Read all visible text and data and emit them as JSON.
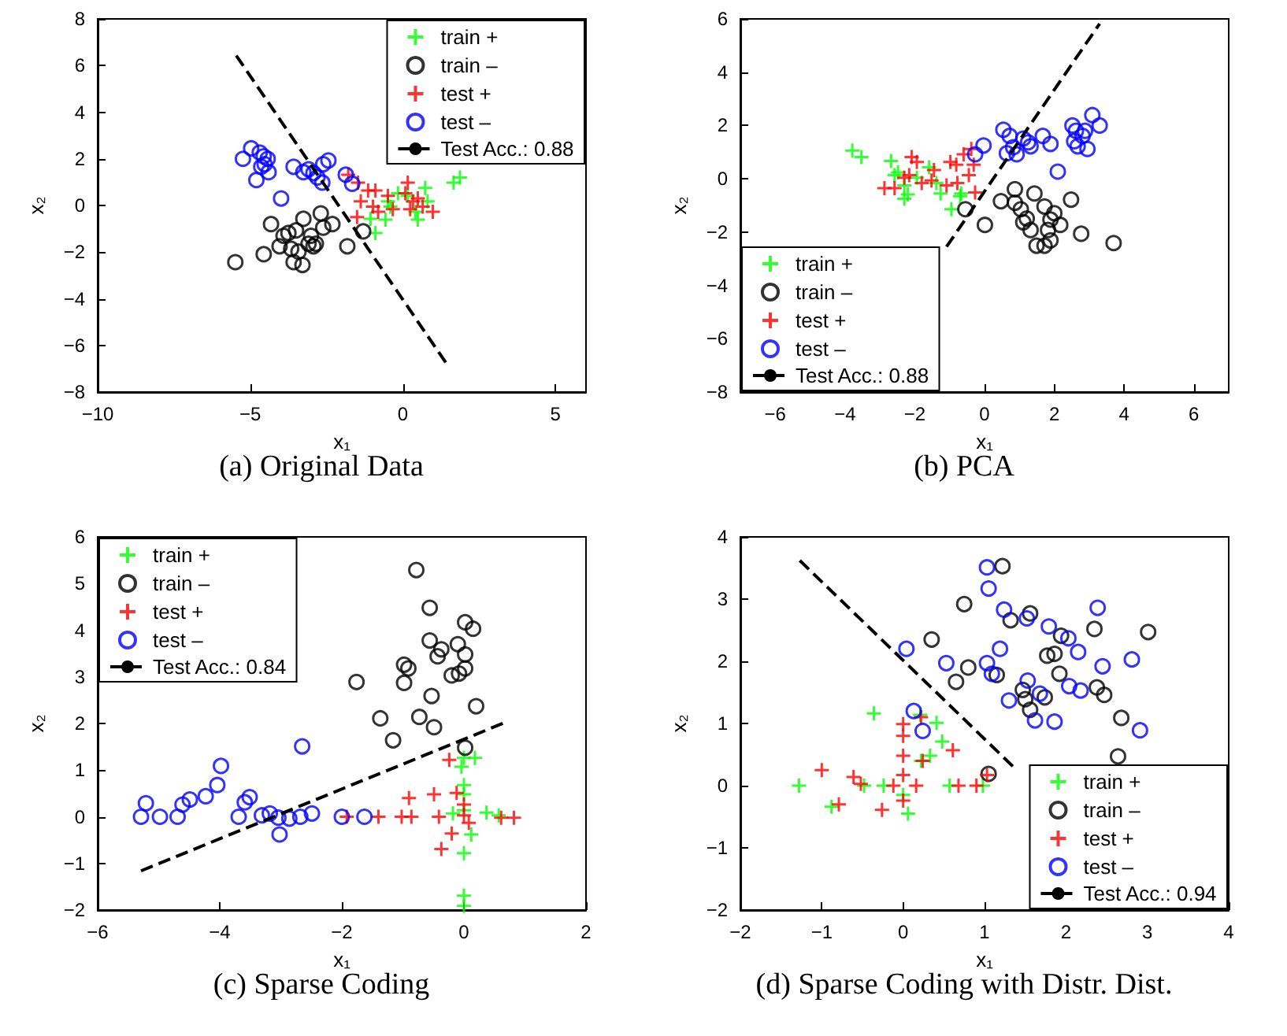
{
  "chart_data": [
    {
      "type": "scatter",
      "title": "(a) Original Data",
      "xlabel": "x₁",
      "ylabel": "x₂",
      "xlim": [
        -10,
        6
      ],
      "ylim": [
        -8,
        8
      ],
      "xticks": [
        -10,
        -5,
        0,
        5
      ],
      "yticks": [
        -8,
        -6,
        -4,
        -2,
        0,
        2,
        4,
        6,
        8
      ],
      "legend": "top right",
      "series": [
        {
          "name": "train +",
          "color": "#00ff00",
          "marker": "cross",
          "x": [
            -1.06,
            -0.9,
            -0.57,
            -0.41,
            -0.16,
            0.16,
            0.49,
            0.73,
            0.81,
            1.66,
            1.87,
            -0.49,
            0.41
          ],
          "values": [
            -0.57,
            -1.18,
            -0.61,
            -0.05,
            0.52,
            0.41,
            -0.61,
            0.75,
            0.18,
            0.98,
            1.2,
            0.18,
            -0.27
          ]
        },
        {
          "name": "train –",
          "color": "#000000",
          "marker": "circle",
          "x": [
            -5.49,
            -4.56,
            -4.32,
            -4.04,
            -3.91,
            -3.75,
            -3.66,
            -3.58,
            -3.5,
            -3.42,
            -3.29,
            -3.26,
            -3.09,
            -3.01,
            -2.93,
            -2.85,
            -2.69,
            -2.61,
            -2.31,
            -1.82,
            -1.3
          ],
          "values": [
            -2.43,
            -2.09,
            -0.8,
            -1.75,
            -1.3,
            -1.18,
            -1.86,
            -2.43,
            -1.07,
            -1.98,
            -2.55,
            -0.57,
            -1.64,
            -1.3,
            -1.75,
            -1.64,
            -0.34,
            -0.95,
            -0.8,
            -1.75,
            -1.11
          ]
        },
        {
          "name": "test +",
          "color": "#ff0000",
          "marker": "cross",
          "x": [
            -1.79,
            -1.47,
            -1.38,
            -1.14,
            -0.98,
            -0.9,
            -1.5,
            -0.81,
            -0.49,
            -0.33,
            0.08,
            0.16,
            0.33,
            0.24,
            0.49,
            0.65,
            0.98
          ],
          "values": [
            1.32,
            0.98,
            0.18,
            0.64,
            -0.05,
            0.64,
            -0.5,
            -0.27,
            0.41,
            -0.16,
            0.52,
            0.98,
            0.18,
            -0.16,
            0.3,
            -0.05,
            -0.27
          ]
        },
        {
          "name": "test –",
          "color": "#0000ff",
          "marker": "circle",
          "x": [
            -5.24,
            -4.97,
            -4.69,
            -4.56,
            -4.43,
            -4.53,
            -4.64,
            -4.8,
            -4.4,
            -3.99,
            -3.58,
            -3.26,
            -3.09,
            -2.93,
            -2.8,
            -2.64,
            -2.44,
            -2.61,
            -1.87,
            -1.66
          ],
          "values": [
            2.0,
            2.45,
            2.27,
            2.11,
            2.0,
            1.77,
            1.66,
            1.09,
            1.43,
            0.3,
            1.66,
            1.43,
            1.55,
            1.39,
            1.2,
            0.98,
            1.93,
            1.77,
            1.32,
            0.93
          ]
        },
        {
          "type": "line",
          "name": "Test Acc.: 0.88",
          "color": "#000000",
          "marker": "none",
          "line_style": "dashed",
          "x": [
            -5.46,
            1.47
          ],
          "values": [
            6.43,
            -6.86
          ]
        }
      ]
    },
    {
      "type": "scatter",
      "title": "(b) PCA",
      "xlabel": "x₁",
      "ylabel": "x₂",
      "xlim": [
        -7,
        7
      ],
      "ylim": [
        -8,
        6
      ],
      "xticks": [
        -6,
        -4,
        -2,
        0,
        2,
        4,
        6
      ],
      "yticks": [
        -8,
        -6,
        -4,
        -2,
        0,
        2,
        4,
        6
      ],
      "legend": "bottom left",
      "series": [
        {
          "name": "train +",
          "color": "#00ff00",
          "marker": "cross",
          "x": [
            -3.79,
            -3.53,
            -2.68,
            -2.58,
            -2.48,
            -2.3,
            -2.3,
            -2.2,
            -1.94,
            -1.59,
            -1.38,
            -1.26,
            -0.95,
            -0.7,
            -0.67
          ],
          "values": [
            1.06,
            0.82,
            0.67,
            0.14,
            0.24,
            -0.25,
            -0.75,
            -0.59,
            0.04,
            0.43,
            -0.16,
            -0.55,
            -1.14,
            -0.65,
            -0.55
          ]
        },
        {
          "name": "train –",
          "color": "#000000",
          "marker": "circle",
          "x": [
            -0.55,
            0.01,
            0.47,
            0.87,
            0.87,
            1.04,
            1.11,
            1.21,
            1.32,
            1.43,
            1.49,
            1.72,
            1.72,
            1.82,
            1.89,
            1.89,
            2.0,
            2.17,
            2.48,
            2.77,
            3.7
          ],
          "values": [
            -1.14,
            -1.73,
            -0.84,
            -0.39,
            -0.9,
            -1.14,
            -1.63,
            -1.49,
            -1.92,
            -0.55,
            -2.51,
            -1.04,
            -2.51,
            -1.92,
            -1.53,
            -2.31,
            -1.29,
            -1.73,
            -0.78,
            -2.06,
            -2.41
          ]
        },
        {
          "name": "test +",
          "color": "#ff0000",
          "marker": "cross",
          "x": [
            -2.87,
            -2.58,
            -2.3,
            -2.16,
            -2.09,
            -1.94,
            -1.8,
            -1.52,
            -1.45,
            -1.09,
            -0.98,
            -0.81,
            -0.78,
            -0.6,
            -0.45,
            -0.38,
            -0.31,
            -0.27
          ],
          "values": [
            -0.35,
            -0.35,
            0.04,
            0.14,
            0.82,
            0.63,
            -0.16,
            -0.06,
            0.33,
            -0.25,
            0.63,
            0.53,
            -0.16,
            0.92,
            0.14,
            1.12,
            0.53,
            -0.51
          ]
        },
        {
          "name": "test –",
          "color": "#0000ff",
          "marker": "circle",
          "x": [
            -0.27,
            -0.03,
            0.54,
            0.72,
            0.64,
            0.82,
            0.92,
            1.11,
            1.25,
            1.32,
            1.67,
            1.89,
            2.1,
            2.52,
            2.62,
            2.57,
            2.67,
            2.81,
            2.88,
            3.09,
            3.3,
            2.95
          ],
          "values": [
            0.92,
            1.25,
            1.84,
            1.61,
            0.96,
            1.18,
            0.92,
            1.51,
            1.37,
            1.22,
            1.61,
            1.31,
            0.27,
            2.0,
            1.8,
            1.41,
            1.22,
            1.61,
            1.8,
            2.39,
            2.0,
            1.12
          ]
        },
        {
          "type": "line",
          "name": "Test Acc.: 0.88",
          "color": "#000000",
          "marker": "none",
          "line_style": "dashed",
          "x": [
            -1.09,
            3.3
          ],
          "values": [
            -2.55,
            5.82
          ]
        }
      ]
    },
    {
      "type": "scatter",
      "title": "(c) Sparse Coding",
      "xlabel": "x₁",
      "ylabel": "x₂",
      "xlim": [
        -6,
        2
      ],
      "ylim": [
        -2,
        6
      ],
      "xticks": [
        -6,
        -4,
        -2,
        0,
        2
      ],
      "yticks": [
        -2,
        -1,
        0,
        1,
        2,
        3,
        4,
        5,
        6
      ],
      "legend": "top left",
      "series": [
        {
          "name": "train +",
          "color": "#00ff00",
          "marker": "cross",
          "x": [
            0,
            0.18,
            -0.04,
            0,
            0,
            0,
            -0.18,
            0.37,
            0.57,
            0.12,
            0,
            0,
            0
          ],
          "values": [
            1.26,
            1.26,
            1.07,
            0.68,
            0.48,
            0.14,
            0.07,
            0.09,
            0.03,
            -0.38,
            -0.78,
            -1.69,
            -1.91
          ]
        },
        {
          "name": "train –",
          "color": "#000000",
          "marker": "circle",
          "x": [
            -0.78,
            -0.56,
            0.02,
            0.15,
            -0.56,
            -0.37,
            -0.43,
            -0.1,
            0.02,
            -0.98,
            -0.91,
            -0.98,
            -1.76,
            -0.2,
            -0.08,
            0.02,
            -0.53,
            -0.73,
            -0.49,
            0.2,
            -1.37,
            -1.16,
            0.02
          ],
          "values": [
            5.29,
            4.48,
            4.17,
            4.03,
            3.78,
            3.59,
            3.44,
            3.7,
            3.48,
            3.26,
            3.18,
            2.87,
            2.89,
            3.03,
            3.07,
            3.18,
            2.59,
            2.14,
            1.92,
            2.37,
            2.11,
            1.64,
            1.48
          ]
        },
        {
          "name": "test +",
          "color": "#ff0000",
          "marker": "cross",
          "x": [
            -1.92,
            -1.4,
            -1.02,
            -0.86,
            -0.9,
            -0.49,
            -0.41,
            -0.24,
            -0.12,
            0,
            0.08,
            -0.2,
            -0.37,
            0.61,
            0.82,
            0
          ],
          "values": [
            0,
            0,
            0,
            0,
            0.4,
            0.48,
            0,
            1.22,
            0.51,
            0.26,
            -0.13,
            -0.36,
            -0.69,
            -0.02,
            -0.02,
            0.03
          ]
        },
        {
          "name": "test –",
          "color": "#0000ff",
          "marker": "circle",
          "x": [
            -5.29,
            -5.21,
            -4.98,
            -4.69,
            -4.61,
            -4.49,
            -4.23,
            -4.04,
            -3.98,
            -3.69,
            -3.59,
            -3.51,
            -3.31,
            -3.18,
            -3.04,
            -3.02,
            -2.86,
            -2.68,
            -2.65,
            -2.49,
            -2.0,
            -1.63
          ],
          "values": [
            0,
            0.29,
            0,
            0,
            0.26,
            0.37,
            0.44,
            0.68,
            1.09,
            0,
            0.31,
            0.42,
            0.03,
            0.07,
            -0.02,
            -0.38,
            -0.04,
            0,
            1.51,
            0.07,
            0,
            0
          ]
        },
        {
          "type": "line",
          "name": "Test Acc.: 0.84",
          "color": "#000000",
          "marker": "none",
          "line_style": "dashed",
          "x": [
            -5.29,
            0.69
          ],
          "values": [
            -1.16,
            2.03
          ]
        }
      ]
    },
    {
      "type": "scatter",
      "title": "(d) Sparse Coding with Distr. Dist.",
      "xlabel": "x₁",
      "ylabel": "x₂",
      "xlim": [
        -2,
        4
      ],
      "ylim": [
        -2,
        4
      ],
      "xticks": [
        -2,
        -1,
        0,
        1,
        2,
        3,
        4
      ],
      "yticks": [
        -2,
        -1,
        0,
        1,
        2,
        3,
        4
      ],
      "legend": "bottom right",
      "series": [
        {
          "name": "train +",
          "color": "#00ff00",
          "marker": "cross",
          "x": [
            -1.28,
            -0.88,
            -0.36,
            -0.48,
            -0.24,
            0,
            0.06,
            0.22,
            0.33,
            0.41,
            0.48,
            0.57,
            0.98,
            0.21
          ],
          "values": [
            0,
            -0.34,
            1.16,
            0,
            0,
            -0.15,
            -0.45,
            0.4,
            0.48,
            1.01,
            0.71,
            0,
            0,
            1.14
          ]
        },
        {
          "name": "train –",
          "color": "#000000",
          "marker": "circle",
          "x": [
            1.22,
            0.75,
            0.35,
            1.32,
            1.56,
            0.8,
            0.65,
            1.15,
            1.77,
            1.86,
            1.94,
            1.92,
            2.35,
            3.01,
            1.47,
            1.5,
            1.56,
            1.74,
            2.38,
            2.47,
            2.68,
            1.05,
            2.64
          ],
          "values": [
            3.53,
            2.92,
            2.35,
            2.66,
            2.77,
            1.9,
            1.67,
            1.78,
            2.09,
            2.12,
            2.41,
            1.8,
            2.52,
            2.47,
            1.54,
            1.39,
            1.22,
            1.42,
            1.58,
            1.46,
            1.09,
            0.19,
            0.47
          ]
        },
        {
          "name": "test +",
          "color": "#ff0000",
          "marker": "cross",
          "x": [
            -1.0,
            -0.79,
            -0.61,
            -0.52,
            -0.26,
            -0.12,
            0,
            0,
            0,
            0,
            0,
            0.16,
            0.24,
            0.22,
            0.61,
            0.68,
            0.9,
            1.03
          ],
          "values": [
            0.25,
            -0.3,
            0.14,
            0.03,
            -0.39,
            0,
            0.99,
            0.8,
            0.48,
            0.17,
            -0.24,
            0,
            0.4,
            1.1,
            0.57,
            0,
            0,
            0.17
          ]
        },
        {
          "name": "test –",
          "color": "#0000ff",
          "marker": "circle",
          "x": [
            1.03,
            1.05,
            1.24,
            1.52,
            1.79,
            2.03,
            2.39,
            0.04,
            0.53,
            1.03,
            1.09,
            1.19,
            1.53,
            1.68,
            2.04,
            2.18,
            2.15,
            2.45,
            2.81,
            2.91,
            1.86,
            1.62,
            1.3,
            0.13,
            0.24
          ],
          "values": [
            3.51,
            3.17,
            2.83,
            2.69,
            2.56,
            2.37,
            2.86,
            2.2,
            1.97,
            1.97,
            1.8,
            2.2,
            1.69,
            1.48,
            1.6,
            1.53,
            2.15,
            1.92,
            2.03,
            0.89,
            1.03,
            1.05,
            1.37,
            1.2,
            0.88
          ]
        },
        {
          "type": "line",
          "name": "Test Acc.: 0.94",
          "color": "#000000",
          "marker": "none",
          "line_style": "dashed",
          "x": [
            -1.27,
            1.38
          ],
          "values": [
            3.62,
            0.27
          ]
        }
      ]
    }
  ]
}
